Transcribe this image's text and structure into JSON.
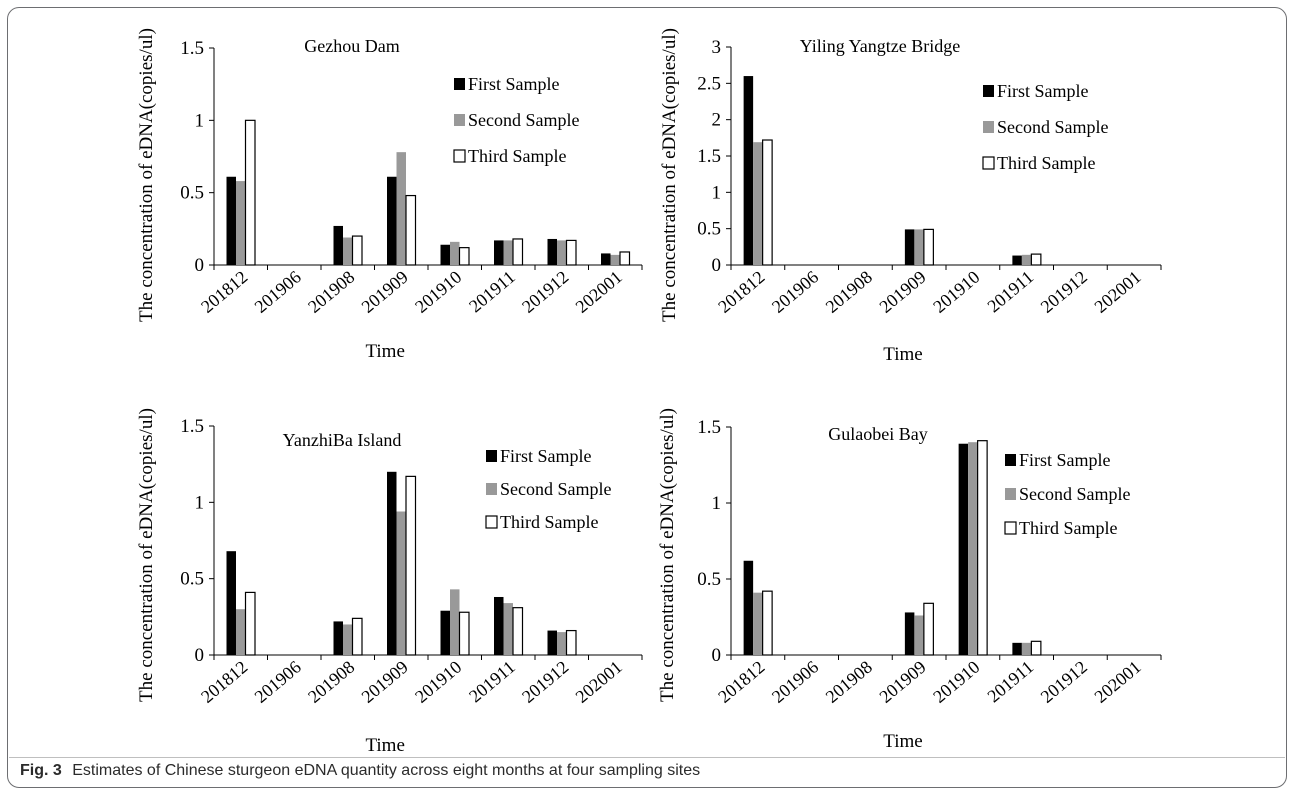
{
  "caption": {
    "label": "Fig. 3",
    "text": "Estimates of Chinese sturgeon eDNA quantity across eight months at four sampling sites"
  },
  "colors": {
    "first": "#000000",
    "second": "#999999",
    "third": "#ffffff"
  },
  "chart_data": [
    {
      "type": "bar",
      "title": "Gezhou Dam",
      "xlabel": "Time",
      "ylabel": "The concentration of eDNA(copies/ul)",
      "ylim": [
        0,
        1.5
      ],
      "yticks": [
        "0",
        "0.5",
        "1",
        "1.5"
      ],
      "categories": [
        "201812",
        "201906",
        "201908",
        "201909",
        "201910",
        "201911",
        "201912",
        "202001"
      ],
      "legend_position": "top-right",
      "series": [
        {
          "name": "First Sample",
          "values": [
            0.61,
            0,
            0.27,
            0.61,
            0.14,
            0.17,
            0.18,
            0.08
          ]
        },
        {
          "name": "Second Sample",
          "values": [
            0.58,
            0,
            0.19,
            0.78,
            0.16,
            0.17,
            0.17,
            0.07
          ]
        },
        {
          "name": "Third Sample",
          "values": [
            1.0,
            0,
            0.2,
            0.48,
            0.12,
            0.18,
            0.17,
            0.09
          ]
        }
      ]
    },
    {
      "type": "bar",
      "title": "Yiling Yangtze Bridge",
      "xlabel": "Time",
      "ylabel": "The concentration of eDNA(copies/ul)",
      "ylim": [
        0,
        3
      ],
      "yticks": [
        "0",
        "0.5",
        "1",
        "1.5",
        "2",
        "2.5",
        "3"
      ],
      "categories": [
        "201812",
        "201906",
        "201908",
        "201909",
        "201910",
        "201911",
        "201912",
        "202001"
      ],
      "legend_position": "top-right",
      "series": [
        {
          "name": "First Sample",
          "values": [
            2.6,
            0,
            0,
            0.49,
            0,
            0.13,
            0,
            0
          ]
        },
        {
          "name": "Second Sample",
          "values": [
            1.69,
            0,
            0,
            0.49,
            0,
            0.14,
            0,
            0
          ]
        },
        {
          "name": "Third Sample",
          "values": [
            1.72,
            0,
            0,
            0.49,
            0,
            0.15,
            0,
            0
          ]
        }
      ]
    },
    {
      "type": "bar",
      "title": "YanzhiBa Island",
      "xlabel": "Time",
      "ylabel": "The concentration of eDNA(copies/ul)",
      "ylim": [
        0,
        1.5
      ],
      "yticks": [
        "0",
        "0.5",
        "1",
        "1.5"
      ],
      "categories": [
        "201812",
        "201906",
        "201908",
        "201909",
        "201910",
        "201911",
        "201912",
        "202001"
      ],
      "legend_position": "top-right",
      "series": [
        {
          "name": "First Sample",
          "values": [
            0.68,
            0,
            0.22,
            1.2,
            0.29,
            0.38,
            0.16,
            0
          ]
        },
        {
          "name": "Second Sample",
          "values": [
            0.3,
            0,
            0.2,
            0.94,
            0.43,
            0.34,
            0.15,
            0
          ]
        },
        {
          "name": "Third Sample",
          "values": [
            0.41,
            0,
            0.24,
            1.17,
            0.28,
            0.31,
            0.16,
            0
          ]
        }
      ]
    },
    {
      "type": "bar",
      "title": "Gulaobei Bay",
      "xlabel": "Time",
      "ylabel": "The concentration of eDNA(copies/ul)",
      "ylim": [
        0,
        1.5
      ],
      "yticks": [
        "0",
        "0.5",
        "1",
        "1.5"
      ],
      "categories": [
        "201812",
        "201906",
        "201908",
        "201909",
        "201910",
        "201911",
        "201912",
        "202001"
      ],
      "legend_position": "top-right",
      "series": [
        {
          "name": "First Sample",
          "values": [
            0.62,
            0,
            0,
            0.28,
            1.39,
            0.08,
            0,
            0
          ]
        },
        {
          "name": "Second Sample",
          "values": [
            0.41,
            0,
            0,
            0.26,
            1.4,
            0.08,
            0,
            0
          ]
        },
        {
          "name": "Third Sample",
          "values": [
            0.42,
            0,
            0,
            0.34,
            1.41,
            0.09,
            0,
            0
          ]
        }
      ]
    }
  ]
}
